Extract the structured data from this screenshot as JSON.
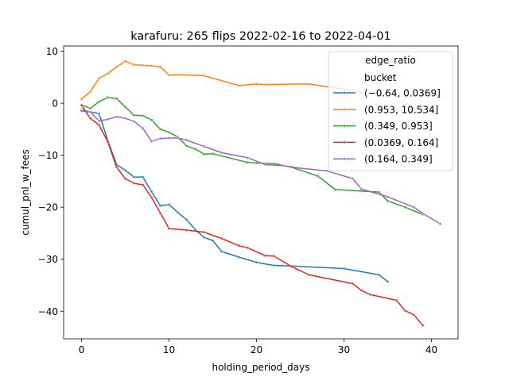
{
  "chart_data": {
    "type": "line",
    "title": "karafuru: 265 flips 2022-02-16 to 2022-04-01",
    "xlabel": "holding_period_days",
    "ylabel": "cumul_pnl_w_fees",
    "xlim": [
      -2.05,
      43.05
    ],
    "ylim": [
      -45.3,
      11.0
    ],
    "xticks": [
      0,
      10,
      20,
      30,
      40
    ],
    "yticks": [
      -40,
      -30,
      -20,
      -10,
      0,
      10
    ],
    "xtick_labels": [
      "0",
      "10",
      "20",
      "30",
      "40"
    ],
    "ytick_labels": [
      "−40",
      "−30",
      "−20",
      "−10",
      "0",
      "10"
    ],
    "grid": false,
    "legend": {
      "title": "edge_ratio",
      "subtitle": "bucket",
      "placement": "top-right"
    },
    "series": [
      {
        "name": "(−0.64, 0.0369]",
        "color": "#1f77b4",
        "points": [
          [
            0,
            -1.3
          ],
          [
            2,
            -2.0
          ],
          [
            3,
            -7.2
          ],
          [
            4,
            -11.8
          ],
          [
            5,
            -12.9
          ],
          [
            6,
            -14.2
          ],
          [
            7,
            -14.2
          ],
          [
            8,
            -17.0
          ],
          [
            9,
            -19.7
          ],
          [
            10,
            -19.5
          ],
          [
            11,
            -21.0
          ],
          [
            12,
            -22.4
          ],
          [
            13,
            -24.3
          ],
          [
            14,
            -25.8
          ],
          [
            15,
            -26.4
          ],
          [
            16,
            -28.5
          ],
          [
            18,
            -29.6
          ],
          [
            20,
            -30.6
          ],
          [
            22,
            -31.2
          ],
          [
            24,
            -31.3
          ],
          [
            30,
            -31.8
          ],
          [
            34,
            -33.0
          ],
          [
            35,
            -34.3
          ]
        ]
      },
      {
        "name": "(0.953, 10.534]",
        "color": "#ff7f0e",
        "points": [
          [
            0,
            0.8
          ],
          [
            1,
            2.2
          ],
          [
            2,
            4.8
          ],
          [
            3,
            5.7
          ],
          [
            4,
            7.0
          ],
          [
            5,
            8.1
          ],
          [
            6,
            7.4
          ],
          [
            7,
            7.3
          ],
          [
            8,
            7.2
          ],
          [
            9,
            7.0
          ],
          [
            10,
            5.4
          ],
          [
            11,
            5.5
          ],
          [
            14,
            5.3
          ],
          [
            18,
            3.4
          ],
          [
            20,
            3.7
          ],
          [
            21,
            3.6
          ],
          [
            26,
            3.7
          ],
          [
            30,
            2.7
          ],
          [
            31,
            2.5
          ],
          [
            32,
            2.0
          ]
        ]
      },
      {
        "name": "(0.349, 0.953]",
        "color": "#2ca02c",
        "points": [
          [
            0,
            -0.3
          ],
          [
            1,
            -1.0
          ],
          [
            2,
            0.3
          ],
          [
            3,
            1.1
          ],
          [
            4,
            0.9
          ],
          [
            5,
            -0.7
          ],
          [
            6,
            -2.3
          ],
          [
            7,
            -2.4
          ],
          [
            8,
            -3.2
          ],
          [
            9,
            -5.0
          ],
          [
            10,
            -5.6
          ],
          [
            11,
            -6.5
          ],
          [
            12,
            -8.2
          ],
          [
            13,
            -8.8
          ],
          [
            14,
            -9.8
          ],
          [
            15,
            -9.7
          ],
          [
            19,
            -11.4
          ],
          [
            20,
            -11.5
          ],
          [
            22,
            -11.6
          ],
          [
            24,
            -12.3
          ],
          [
            27,
            -14.0
          ],
          [
            29,
            -16.6
          ],
          [
            34,
            -17.1
          ],
          [
            35,
            -18.8
          ],
          [
            37,
            -20.0
          ],
          [
            39,
            -21.4
          ]
        ]
      },
      {
        "name": "(0.0369, 0.164]",
        "color": "#d62728",
        "points": [
          [
            0,
            -0.4
          ],
          [
            1,
            -2.9
          ],
          [
            2,
            -4.2
          ],
          [
            3,
            -7.4
          ],
          [
            4,
            -12.3
          ],
          [
            5,
            -14.5
          ],
          [
            6,
            -15.4
          ],
          [
            7,
            -15.7
          ],
          [
            8,
            -18.1
          ],
          [
            9,
            -21.1
          ],
          [
            10,
            -24.1
          ],
          [
            12,
            -24.4
          ],
          [
            14,
            -24.8
          ],
          [
            16,
            -26.0
          ],
          [
            18,
            -27.4
          ],
          [
            19,
            -27.8
          ],
          [
            21,
            -29.3
          ],
          [
            22,
            -29.4
          ],
          [
            24,
            -31.4
          ],
          [
            26,
            -33.0
          ],
          [
            31,
            -34.7
          ],
          [
            32,
            -36.0
          ],
          [
            33,
            -36.8
          ],
          [
            36,
            -37.9
          ],
          [
            37,
            -39.9
          ],
          [
            38,
            -40.7
          ],
          [
            39,
            -42.7
          ]
        ]
      },
      {
        "name": "(0.164, 0.349]",
        "color": "#9467bd",
        "points": [
          [
            0,
            -1.5
          ],
          [
            1,
            -1.7
          ],
          [
            2,
            -3.4
          ],
          [
            3,
            -3.1
          ],
          [
            4,
            -2.6
          ],
          [
            5,
            -2.9
          ],
          [
            6,
            -3.5
          ],
          [
            7,
            -4.8
          ],
          [
            8,
            -7.3
          ],
          [
            9,
            -6.8
          ],
          [
            10,
            -6.7
          ],
          [
            11,
            -6.7
          ],
          [
            12,
            -7.1
          ],
          [
            14,
            -8.3
          ],
          [
            16,
            -9.5
          ],
          [
            19,
            -10.5
          ],
          [
            21,
            -11.8
          ],
          [
            23,
            -12.0
          ],
          [
            25,
            -12.5
          ],
          [
            28,
            -13.0
          ],
          [
            31,
            -14.5
          ],
          [
            32,
            -16.5
          ],
          [
            35,
            -18.0
          ],
          [
            38,
            -20.0
          ],
          [
            39,
            -21.2
          ],
          [
            41,
            -23.2
          ]
        ]
      }
    ]
  }
}
